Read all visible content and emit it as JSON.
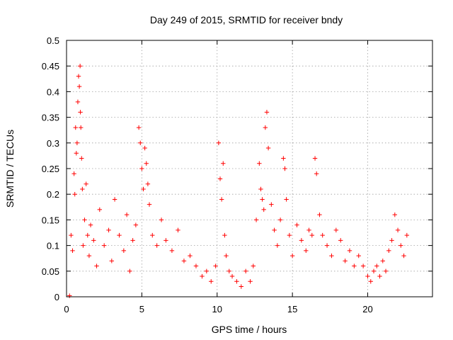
{
  "chart_data": {
    "type": "scatter",
    "title": "Day 249 of 2015, SRMTID for receiver bndy",
    "xlabel": "GPS time / hours",
    "ylabel": "SRMTID / TECUs",
    "xlim": [
      0,
      24.3
    ],
    "ylim": [
      0,
      0.5
    ],
    "x_ticks": [
      0,
      5,
      10,
      15,
      20
    ],
    "x_tick_labels": [
      "0",
      "5",
      "10",
      "15",
      "20"
    ],
    "y_ticks": [
      0,
      0.05,
      0.1,
      0.15,
      0.2,
      0.25,
      0.3,
      0.35,
      0.4,
      0.45,
      0.5
    ],
    "y_tick_labels": [
      "0",
      "0.05",
      "0.1",
      "0.15",
      "0.2",
      "0.25",
      "0.3",
      "0.35",
      "0.4",
      "0.45",
      "0.5"
    ],
    "grid": true,
    "marker": "+",
    "color": "#ff0000",
    "x": [
      0.2,
      0.3,
      0.4,
      0.5,
      0.55,
      0.6,
      0.65,
      0.7,
      0.75,
      0.8,
      0.85,
      0.9,
      0.92,
      0.95,
      1.0,
      1.05,
      1.1,
      1.2,
      1.3,
      1.4,
      1.5,
      1.6,
      1.8,
      2.0,
      2.2,
      2.5,
      2.8,
      3.0,
      3.2,
      3.5,
      3.8,
      4.0,
      4.2,
      4.4,
      4.6,
      4.8,
      4.9,
      5.0,
      5.1,
      5.2,
      5.3,
      5.4,
      5.5,
      5.7,
      6.0,
      6.3,
      6.6,
      7.0,
      7.4,
      7.8,
      8.2,
      8.6,
      9.0,
      9.3,
      9.6,
      9.9,
      10.1,
      10.2,
      10.3,
      10.4,
      10.5,
      10.6,
      10.8,
      11.0,
      11.3,
      11.6,
      11.9,
      12.2,
      12.4,
      12.6,
      12.8,
      12.9,
      13.0,
      13.1,
      13.2,
      13.3,
      13.4,
      13.6,
      13.8,
      14.0,
      14.2,
      14.4,
      14.5,
      14.6,
      14.8,
      15.0,
      15.3,
      15.6,
      15.9,
      16.1,
      16.3,
      16.5,
      16.6,
      16.8,
      17.0,
      17.3,
      17.6,
      17.9,
      18.2,
      18.5,
      18.8,
      19.1,
      19.4,
      19.7,
      20.0,
      20.2,
      20.4,
      20.6,
      20.8,
      21.0,
      21.2,
      21.4,
      21.6,
      21.8,
      22.0,
      22.2,
      22.4,
      22.6
    ],
    "y": [
      0.002,
      0.12,
      0.09,
      0.24,
      0.2,
      0.33,
      0.28,
      0.3,
      0.38,
      0.43,
      0.41,
      0.45,
      0.36,
      0.33,
      0.27,
      0.21,
      0.1,
      0.15,
      0.22,
      0.12,
      0.08,
      0.14,
      0.11,
      0.06,
      0.17,
      0.1,
      0.13,
      0.07,
      0.19,
      0.12,
      0.09,
      0.16,
      0.05,
      0.11,
      0.14,
      0.33,
      0.3,
      0.25,
      0.21,
      0.29,
      0.26,
      0.22,
      0.18,
      0.12,
      0.1,
      0.15,
      0.11,
      0.09,
      0.13,
      0.07,
      0.08,
      0.06,
      0.04,
      0.05,
      0.03,
      0.06,
      0.3,
      0.23,
      0.19,
      0.26,
      0.12,
      0.08,
      0.05,
      0.04,
      0.03,
      0.02,
      0.05,
      0.03,
      0.06,
      0.15,
      0.26,
      0.21,
      0.19,
      0.17,
      0.33,
      0.36,
      0.29,
      0.18,
      0.13,
      0.1,
      0.15,
      0.27,
      0.25,
      0.19,
      0.12,
      0.08,
      0.14,
      0.11,
      0.09,
      0.13,
      0.12,
      0.27,
      0.24,
      0.16,
      0.12,
      0.1,
      0.08,
      0.13,
      0.11,
      0.07,
      0.09,
      0.06,
      0.08,
      0.06,
      0.04,
      0.03,
      0.05,
      0.06,
      0.04,
      0.07,
      0.05,
      0.09,
      0.11,
      0.16,
      0.13,
      0.1,
      0.08,
      0.12
    ]
  }
}
